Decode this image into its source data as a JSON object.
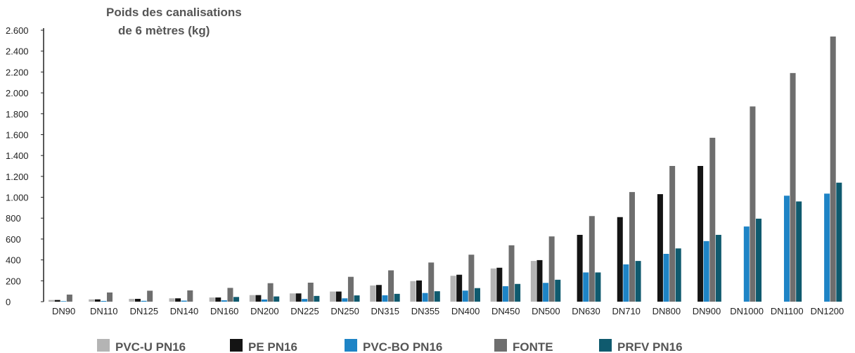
{
  "chart_data": {
    "type": "bar",
    "title": [
      "Poids des canalisations",
      "de 6 mètres (kg)"
    ],
    "xlabel": "",
    "ylabel": "",
    "ylim": [
      0,
      2600
    ],
    "yticks": [
      0,
      200,
      400,
      600,
      800,
      1000,
      1200,
      1400,
      1600,
      1800,
      2000,
      2200,
      2400,
      2600
    ],
    "ytick_labels": [
      "0",
      "200",
      "400",
      "600",
      "800",
      "1.000",
      "1.200",
      "1.400",
      "1.600",
      "1.800",
      "2.000",
      "2.200",
      "2.400",
      "2.600"
    ],
    "grid": false,
    "legend_position": "bottom",
    "categories": [
      "DN90",
      "DN110",
      "DN125",
      "DN140",
      "DN160",
      "DN200",
      "DN225",
      "DN250",
      "DN315",
      "DN355",
      "DN400",
      "DN450",
      "DN500",
      "DN630",
      "DN710",
      "DN800",
      "DN900",
      "DN1000",
      "DN1100",
      "DN1200"
    ],
    "series": [
      {
        "name": "PVC-U PN16",
        "color": "#b4b4b4",
        "values": [
          16,
          22,
          27,
          32,
          40,
          63,
          79,
          97,
          155,
          197,
          248,
          318,
          390,
          null,
          null,
          null,
          null,
          null,
          null,
          null
        ]
      },
      {
        "name": "PE PN16",
        "color": "#141414",
        "values": [
          16,
          22,
          27,
          32,
          40,
          63,
          79,
          97,
          160,
          203,
          258,
          325,
          398,
          640,
          810,
          1030,
          1300,
          null,
          null,
          null
        ]
      },
      {
        "name": "PVC-BO PN16",
        "color": "#1e84c6",
        "values": [
          5,
          7,
          8,
          10,
          13,
          21,
          26,
          32,
          61,
          83,
          106,
          148,
          180,
          280,
          357,
          458,
          580,
          720,
          1015,
          1035
        ]
      },
      {
        "name": "FONTE",
        "color": "#6e6e6e",
        "values": [
          68,
          88,
          105,
          108,
          132,
          177,
          182,
          238,
          300,
          375,
          450,
          540,
          625,
          820,
          1050,
          1300,
          1570,
          1870,
          2190,
          2540
        ]
      },
      {
        "name": "PRFV PN16",
        "color": "#0f5a6e",
        "values": [
          null,
          null,
          null,
          null,
          45,
          50,
          55,
          60,
          75,
          100,
          130,
          170,
          210,
          280,
          390,
          510,
          640,
          795,
          960,
          1140
        ]
      }
    ]
  }
}
